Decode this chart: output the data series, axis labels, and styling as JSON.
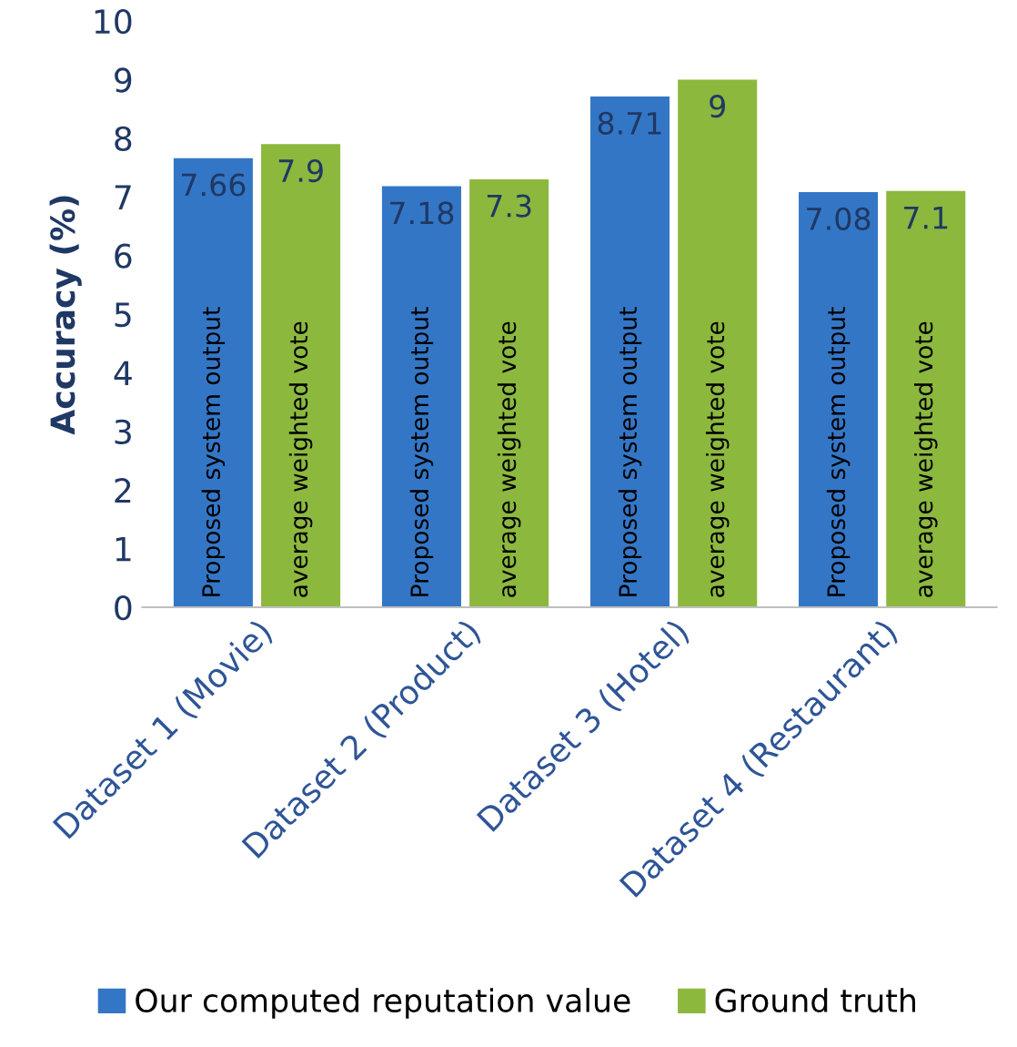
{
  "chart_data": {
    "type": "bar",
    "ylabel": "Accuracy (%)",
    "categories": [
      "Dataset 1 (Movie)",
      "Dataset 2 (Product)",
      "Dataset 3 (Hotel)",
      "Dataset 4 (Restaurant)"
    ],
    "series": [
      {
        "name": "Our computed reputation value",
        "color": "#3476c6",
        "values": [
          7.66,
          7.18,
          8.71,
          7.08
        ]
      },
      {
        "name": "Ground truth",
        "color": "#8cb83e",
        "values": [
          7.9,
          7.3,
          9,
          7.1
        ]
      }
    ],
    "ylim": [
      0,
      10
    ],
    "yticks": [
      0,
      1,
      2,
      3,
      4,
      5,
      6,
      7,
      8,
      9,
      10
    ],
    "grid": false,
    "legend": "bottom",
    "data_labels": true,
    "annotations": [
      "Proposed system output",
      "average weighted vote",
      "Proposed system output",
      "average weighted vote",
      "Proposed system output",
      "average weighted vote",
      "Proposed system output",
      "average weighted vote"
    ]
  }
}
